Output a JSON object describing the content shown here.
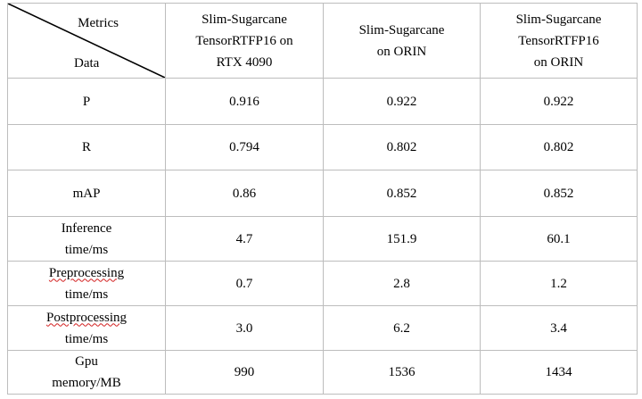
{
  "table": {
    "corner": {
      "metrics_label": "Metrics",
      "data_label": "Data"
    },
    "columns": [
      {
        "lines": [
          "Slim-Sugarcane",
          "TensorRTFP16 on",
          "RTX 4090"
        ]
      },
      {
        "lines": [
          "Slim-Sugarcane",
          "on ORIN"
        ]
      },
      {
        "lines": [
          "Slim-Sugarcane",
          "TensorRTFP16",
          "on ORIN"
        ]
      }
    ],
    "rows": [
      {
        "label_lines": [
          "P"
        ],
        "values": [
          "0.916",
          "0.922",
          "0.922"
        ]
      },
      {
        "label_lines": [
          "R"
        ],
        "values": [
          "0.794",
          "0.802",
          "0.802"
        ]
      },
      {
        "label_lines": [
          "mAP"
        ],
        "values": [
          "0.86",
          "0.852",
          "0.852"
        ]
      },
      {
        "label_lines": [
          "Inference",
          "time/ms"
        ],
        "values": [
          "4.7",
          "151.9",
          "60.1"
        ]
      },
      {
        "label_lines": [
          "Preprocessing",
          "time/ms"
        ],
        "values": [
          "0.7",
          "2.8",
          "1.2"
        ]
      },
      {
        "label_lines": [
          "Postprocessing",
          "time/ms"
        ],
        "values": [
          "3.0",
          "6.2",
          "3.4"
        ]
      },
      {
        "label_lines": [
          "Gpu",
          "memory/MB"
        ],
        "values": [
          "990",
          "1536",
          "1434"
        ]
      }
    ]
  }
}
